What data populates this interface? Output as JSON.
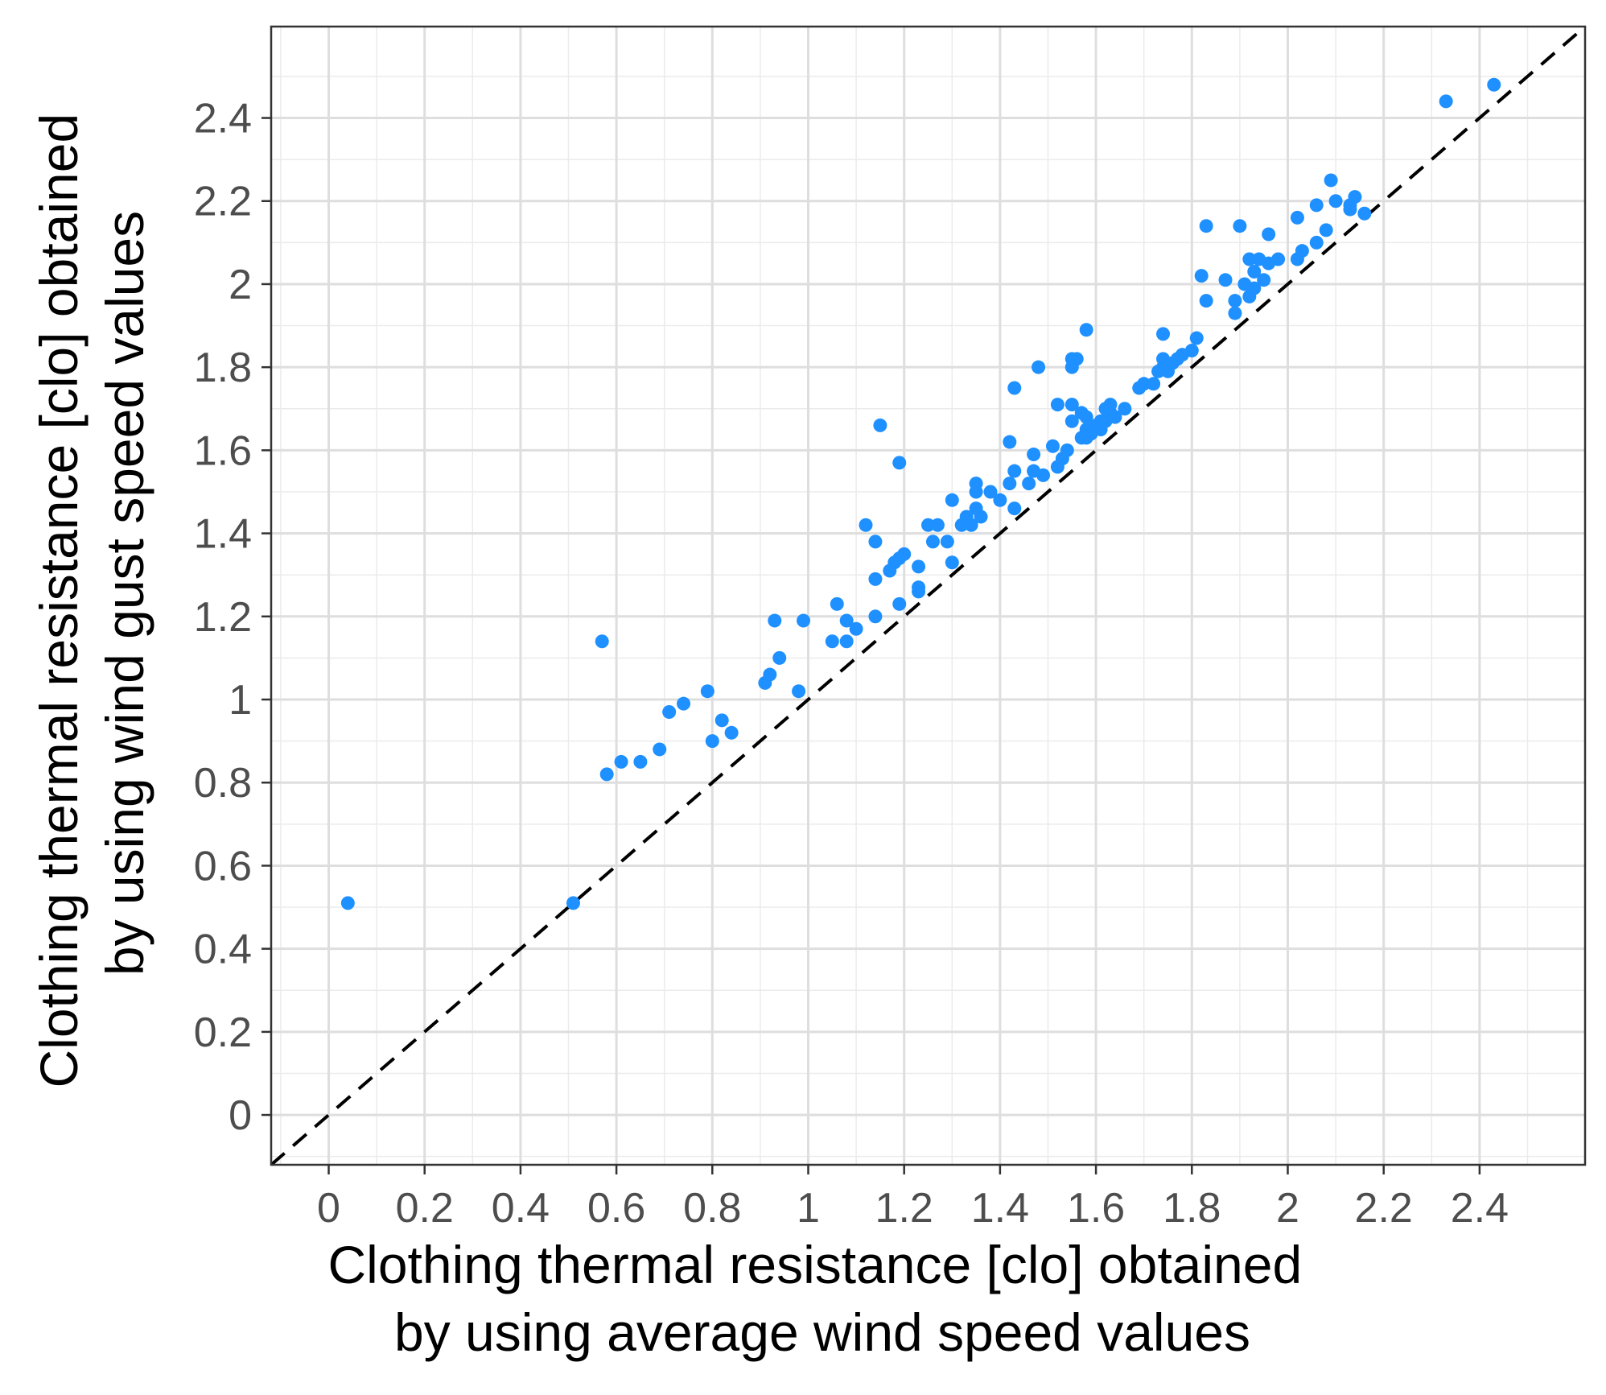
{
  "chart_data": {
    "type": "scatter",
    "xlabel": [
      "Clothing thermal resistance [clo] obtained",
      "by using average wind speed values"
    ],
    "ylabel": [
      "Clothing thermal resistance [clo] obtained",
      "by using wind gust speed values"
    ],
    "xlim": [
      -0.12,
      2.62
    ],
    "ylim": [
      -0.12,
      2.62
    ],
    "x_ticks": [
      0,
      0.2,
      0.4,
      0.6,
      0.8,
      1,
      1.2,
      1.4,
      1.6,
      1.8,
      2,
      2.2,
      2.4
    ],
    "x_tick_labels": [
      "0",
      "0.2",
      "0.4",
      "0.6",
      "0.8",
      "1",
      "1.2",
      "1.4",
      "1.6",
      "1.8",
      "2",
      "2.2",
      "2.4"
    ],
    "y_ticks": [
      0,
      0.2,
      0.4,
      0.6,
      0.8,
      1,
      1.2,
      1.4,
      1.6,
      1.8,
      2,
      2.2,
      2.4
    ],
    "y_tick_labels": [
      "0",
      "0.2",
      "0.4",
      "0.6",
      "0.8",
      "1",
      "1.2",
      "1.4",
      "1.6",
      "1.8",
      "2",
      "2.2",
      "2.4"
    ],
    "grid": true,
    "reference_line": {
      "slope": 1,
      "intercept": 0,
      "style": "dashed",
      "color": "#000000"
    },
    "point_color": "#1E90FF",
    "points": [
      {
        "x": 0.04,
        "y": 0.51
      },
      {
        "x": 0.51,
        "y": 0.51
      },
      {
        "x": 0.57,
        "y": 1.14
      },
      {
        "x": 0.58,
        "y": 0.82
      },
      {
        "x": 0.61,
        "y": 0.85
      },
      {
        "x": 0.65,
        "y": 0.85
      },
      {
        "x": 0.69,
        "y": 0.88
      },
      {
        "x": 0.71,
        "y": 0.97
      },
      {
        "x": 0.74,
        "y": 0.99
      },
      {
        "x": 0.79,
        "y": 1.02
      },
      {
        "x": 0.8,
        "y": 0.9
      },
      {
        "x": 0.82,
        "y": 0.95
      },
      {
        "x": 0.84,
        "y": 0.92
      },
      {
        "x": 0.91,
        "y": 1.04
      },
      {
        "x": 0.92,
        "y": 1.06
      },
      {
        "x": 0.93,
        "y": 1.19
      },
      {
        "x": 0.94,
        "y": 1.1
      },
      {
        "x": 0.98,
        "y": 1.02
      },
      {
        "x": 0.99,
        "y": 1.19
      },
      {
        "x": 1.05,
        "y": 1.14
      },
      {
        "x": 1.06,
        "y": 1.23
      },
      {
        "x": 1.08,
        "y": 1.14
      },
      {
        "x": 1.08,
        "y": 1.19
      },
      {
        "x": 1.1,
        "y": 1.17
      },
      {
        "x": 1.12,
        "y": 1.42
      },
      {
        "x": 1.14,
        "y": 1.2
      },
      {
        "x": 1.14,
        "y": 1.29
      },
      {
        "x": 1.14,
        "y": 1.38
      },
      {
        "x": 1.15,
        "y": 1.66
      },
      {
        "x": 1.17,
        "y": 1.31
      },
      {
        "x": 1.18,
        "y": 1.33
      },
      {
        "x": 1.19,
        "y": 1.23
      },
      {
        "x": 1.19,
        "y": 1.34
      },
      {
        "x": 1.19,
        "y": 1.57
      },
      {
        "x": 1.2,
        "y": 1.35
      },
      {
        "x": 1.23,
        "y": 1.26
      },
      {
        "x": 1.23,
        "y": 1.27
      },
      {
        "x": 1.23,
        "y": 1.32
      },
      {
        "x": 1.25,
        "y": 1.42
      },
      {
        "x": 1.26,
        "y": 1.38
      },
      {
        "x": 1.27,
        "y": 1.42
      },
      {
        "x": 1.29,
        "y": 1.38
      },
      {
        "x": 1.3,
        "y": 1.33
      },
      {
        "x": 1.3,
        "y": 1.48
      },
      {
        "x": 1.32,
        "y": 1.42
      },
      {
        "x": 1.33,
        "y": 1.44
      },
      {
        "x": 1.34,
        "y": 1.42
      },
      {
        "x": 1.35,
        "y": 1.46
      },
      {
        "x": 1.35,
        "y": 1.5
      },
      {
        "x": 1.35,
        "y": 1.52
      },
      {
        "x": 1.36,
        "y": 1.44
      },
      {
        "x": 1.38,
        "y": 1.5
      },
      {
        "x": 1.4,
        "y": 1.48
      },
      {
        "x": 1.42,
        "y": 1.52
      },
      {
        "x": 1.42,
        "y": 1.62
      },
      {
        "x": 1.43,
        "y": 1.46
      },
      {
        "x": 1.43,
        "y": 1.55
      },
      {
        "x": 1.43,
        "y": 1.75
      },
      {
        "x": 1.46,
        "y": 1.52
      },
      {
        "x": 1.47,
        "y": 1.55
      },
      {
        "x": 1.47,
        "y": 1.59
      },
      {
        "x": 1.48,
        "y": 1.8
      },
      {
        "x": 1.49,
        "y": 1.54
      },
      {
        "x": 1.51,
        "y": 1.61
      },
      {
        "x": 1.52,
        "y": 1.56
      },
      {
        "x": 1.52,
        "y": 1.71
      },
      {
        "x": 1.53,
        "y": 1.58
      },
      {
        "x": 1.54,
        "y": 1.6
      },
      {
        "x": 1.55,
        "y": 1.67
      },
      {
        "x": 1.55,
        "y": 1.71
      },
      {
        "x": 1.55,
        "y": 1.8
      },
      {
        "x": 1.55,
        "y": 1.82
      },
      {
        "x": 1.56,
        "y": 1.82
      },
      {
        "x": 1.57,
        "y": 1.63
      },
      {
        "x": 1.57,
        "y": 1.69
      },
      {
        "x": 1.58,
        "y": 1.63
      },
      {
        "x": 1.58,
        "y": 1.65
      },
      {
        "x": 1.58,
        "y": 1.68
      },
      {
        "x": 1.58,
        "y": 1.89
      },
      {
        "x": 1.59,
        "y": 1.64
      },
      {
        "x": 1.6,
        "y": 1.66
      },
      {
        "x": 1.61,
        "y": 1.65
      },
      {
        "x": 1.61,
        "y": 1.67
      },
      {
        "x": 1.62,
        "y": 1.67
      },
      {
        "x": 1.62,
        "y": 1.7
      },
      {
        "x": 1.63,
        "y": 1.69
      },
      {
        "x": 1.63,
        "y": 1.71
      },
      {
        "x": 1.64,
        "y": 1.68
      },
      {
        "x": 1.66,
        "y": 1.7
      },
      {
        "x": 1.69,
        "y": 1.75
      },
      {
        "x": 1.7,
        "y": 1.76
      },
      {
        "x": 1.72,
        "y": 1.76
      },
      {
        "x": 1.73,
        "y": 1.79
      },
      {
        "x": 1.74,
        "y": 1.8
      },
      {
        "x": 1.74,
        "y": 1.82
      },
      {
        "x": 1.74,
        "y": 1.88
      },
      {
        "x": 1.75,
        "y": 1.79
      },
      {
        "x": 1.76,
        "y": 1.81
      },
      {
        "x": 1.77,
        "y": 1.82
      },
      {
        "x": 1.78,
        "y": 1.83
      },
      {
        "x": 1.8,
        "y": 1.84
      },
      {
        "x": 1.81,
        "y": 1.87
      },
      {
        "x": 1.82,
        "y": 2.02
      },
      {
        "x": 1.83,
        "y": 1.96
      },
      {
        "x": 1.83,
        "y": 2.14
      },
      {
        "x": 1.87,
        "y": 2.01
      },
      {
        "x": 1.89,
        "y": 1.93
      },
      {
        "x": 1.89,
        "y": 1.96
      },
      {
        "x": 1.9,
        "y": 2.14
      },
      {
        "x": 1.91,
        "y": 2.0
      },
      {
        "x": 1.92,
        "y": 1.97
      },
      {
        "x": 1.92,
        "y": 2.06
      },
      {
        "x": 1.93,
        "y": 1.99
      },
      {
        "x": 1.93,
        "y": 2.03
      },
      {
        "x": 1.94,
        "y": 2.06
      },
      {
        "x": 1.95,
        "y": 2.01
      },
      {
        "x": 1.96,
        "y": 2.05
      },
      {
        "x": 1.96,
        "y": 2.12
      },
      {
        "x": 1.98,
        "y": 2.06
      },
      {
        "x": 2.02,
        "y": 2.06
      },
      {
        "x": 2.02,
        "y": 2.16
      },
      {
        "x": 2.03,
        "y": 2.08
      },
      {
        "x": 2.06,
        "y": 2.1
      },
      {
        "x": 2.06,
        "y": 2.19
      },
      {
        "x": 2.08,
        "y": 2.13
      },
      {
        "x": 2.09,
        "y": 2.25
      },
      {
        "x": 2.1,
        "y": 2.2
      },
      {
        "x": 2.13,
        "y": 2.18
      },
      {
        "x": 2.13,
        "y": 2.19
      },
      {
        "x": 2.14,
        "y": 2.21
      },
      {
        "x": 2.16,
        "y": 2.17
      },
      {
        "x": 2.33,
        "y": 2.44
      },
      {
        "x": 2.43,
        "y": 2.48
      }
    ]
  }
}
